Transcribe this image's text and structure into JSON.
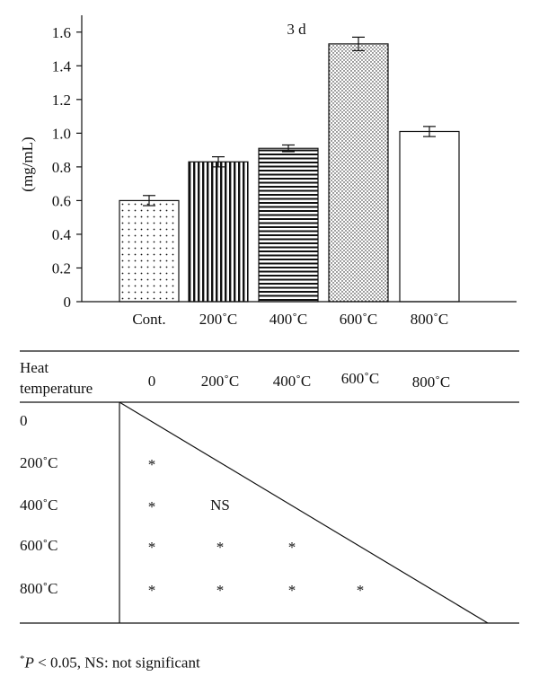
{
  "chart_data": {
    "type": "bar",
    "title": "3 d",
    "ylabel": "(mg/mL)",
    "xlabel": "",
    "ylim": [
      0,
      1.7
    ],
    "yticks": [
      "0",
      "0.2",
      "0.4",
      "0.6",
      "0.8",
      "1.0",
      "1.2",
      "1.4",
      "1.6"
    ],
    "categories": [
      "Cont.",
      "200˚C",
      "400˚C",
      "600˚C",
      "800˚C"
    ],
    "values": [
      0.6,
      0.83,
      0.91,
      1.53,
      1.01
    ],
    "errors": [
      0.03,
      0.03,
      0.02,
      0.04,
      0.03
    ],
    "patterns": [
      "dots",
      "vertical-lines",
      "horizontal-lines",
      "dense-dots",
      "none"
    ],
    "grid": false
  },
  "table": {
    "header_label_line1": "Heat",
    "header_label_line2": "temperature",
    "columns": [
      "0",
      "200˚C",
      "400˚C",
      "600˚C",
      "800˚C"
    ],
    "rows": [
      {
        "label": "0",
        "cells": [
          "",
          "",
          "",
          ""
        ]
      },
      {
        "label": "200˚C",
        "cells": [
          "*",
          "",
          "",
          ""
        ]
      },
      {
        "label": "400˚C",
        "cells": [
          "*",
          "NS",
          "",
          ""
        ]
      },
      {
        "label": "600˚C",
        "cells": [
          "*",
          "*",
          "*",
          ""
        ]
      },
      {
        "label": "800˚C",
        "cells": [
          "*",
          "*",
          "*",
          "*"
        ]
      }
    ]
  },
  "footnote": {
    "sup": "*",
    "p": "P",
    "rest": " < 0.05, NS: not significant"
  }
}
